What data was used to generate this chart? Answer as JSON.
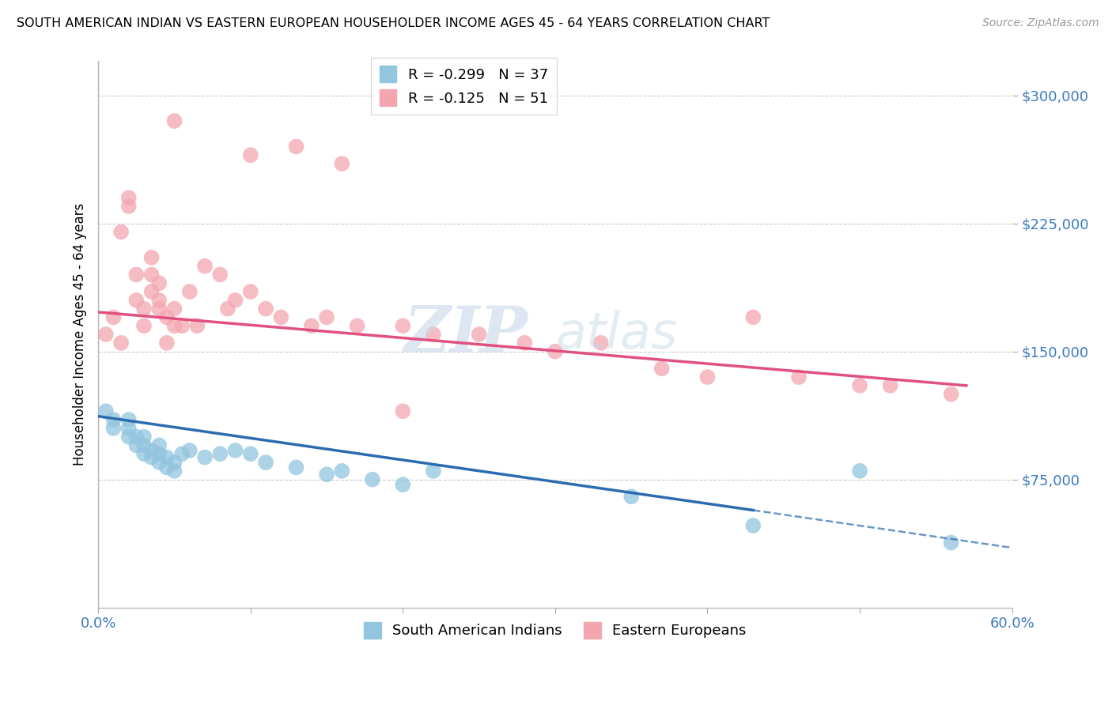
{
  "title": "SOUTH AMERICAN INDIAN VS EASTERN EUROPEAN HOUSEHOLDER INCOME AGES 45 - 64 YEARS CORRELATION CHART",
  "source": "Source: ZipAtlas.com",
  "ylabel": "Householder Income Ages 45 - 64 years",
  "xlim": [
    0.0,
    0.6
  ],
  "ylim": [
    0,
    320000
  ],
  "yticks": [
    75000,
    150000,
    225000,
    300000
  ],
  "ytick_labels": [
    "$75,000",
    "$150,000",
    "$225,000",
    "$300,000"
  ],
  "xticks": [
    0.0,
    0.1,
    0.2,
    0.3,
    0.4,
    0.5,
    0.6
  ],
  "xtick_labels": [
    "0.0%",
    "",
    "",
    "",
    "",
    "",
    "60.0%"
  ],
  "legend1_label": "R = -0.299   N = 37",
  "legend2_label": "R = -0.125   N = 51",
  "blue_color": "#92c5de",
  "pink_color": "#f4a6b0",
  "blue_line_color": "#2b6cb0",
  "pink_line_color": "#e05080",
  "blue_scatter_x": [
    0.005,
    0.01,
    0.01,
    0.02,
    0.02,
    0.02,
    0.025,
    0.025,
    0.03,
    0.03,
    0.03,
    0.035,
    0.035,
    0.04,
    0.04,
    0.04,
    0.045,
    0.045,
    0.05,
    0.05,
    0.055,
    0.06,
    0.07,
    0.08,
    0.09,
    0.1,
    0.11,
    0.13,
    0.15,
    0.16,
    0.18,
    0.2,
    0.22,
    0.35,
    0.43,
    0.5,
    0.56
  ],
  "blue_scatter_y": [
    115000,
    105000,
    110000,
    100000,
    105000,
    110000,
    95000,
    100000,
    90000,
    95000,
    100000,
    88000,
    92000,
    85000,
    90000,
    95000,
    82000,
    88000,
    80000,
    85000,
    90000,
    92000,
    88000,
    90000,
    92000,
    90000,
    85000,
    82000,
    78000,
    80000,
    75000,
    72000,
    80000,
    65000,
    48000,
    80000,
    38000
  ],
  "pink_scatter_x": [
    0.005,
    0.01,
    0.015,
    0.015,
    0.02,
    0.02,
    0.025,
    0.025,
    0.03,
    0.03,
    0.035,
    0.035,
    0.035,
    0.04,
    0.04,
    0.04,
    0.045,
    0.045,
    0.05,
    0.05,
    0.055,
    0.06,
    0.065,
    0.07,
    0.08,
    0.085,
    0.09,
    0.1,
    0.11,
    0.12,
    0.14,
    0.15,
    0.17,
    0.2,
    0.22,
    0.25,
    0.28,
    0.3,
    0.33,
    0.37,
    0.4,
    0.43,
    0.46,
    0.5,
    0.52,
    0.56,
    0.1,
    0.13,
    0.16,
    0.2,
    0.05
  ],
  "pink_scatter_y": [
    160000,
    170000,
    155000,
    220000,
    235000,
    240000,
    180000,
    195000,
    165000,
    175000,
    185000,
    195000,
    205000,
    175000,
    180000,
    190000,
    155000,
    170000,
    165000,
    175000,
    165000,
    185000,
    165000,
    200000,
    195000,
    175000,
    180000,
    185000,
    175000,
    170000,
    165000,
    170000,
    165000,
    165000,
    160000,
    160000,
    155000,
    150000,
    155000,
    140000,
    135000,
    170000,
    135000,
    130000,
    130000,
    125000,
    265000,
    270000,
    260000,
    115000,
    285000
  ]
}
